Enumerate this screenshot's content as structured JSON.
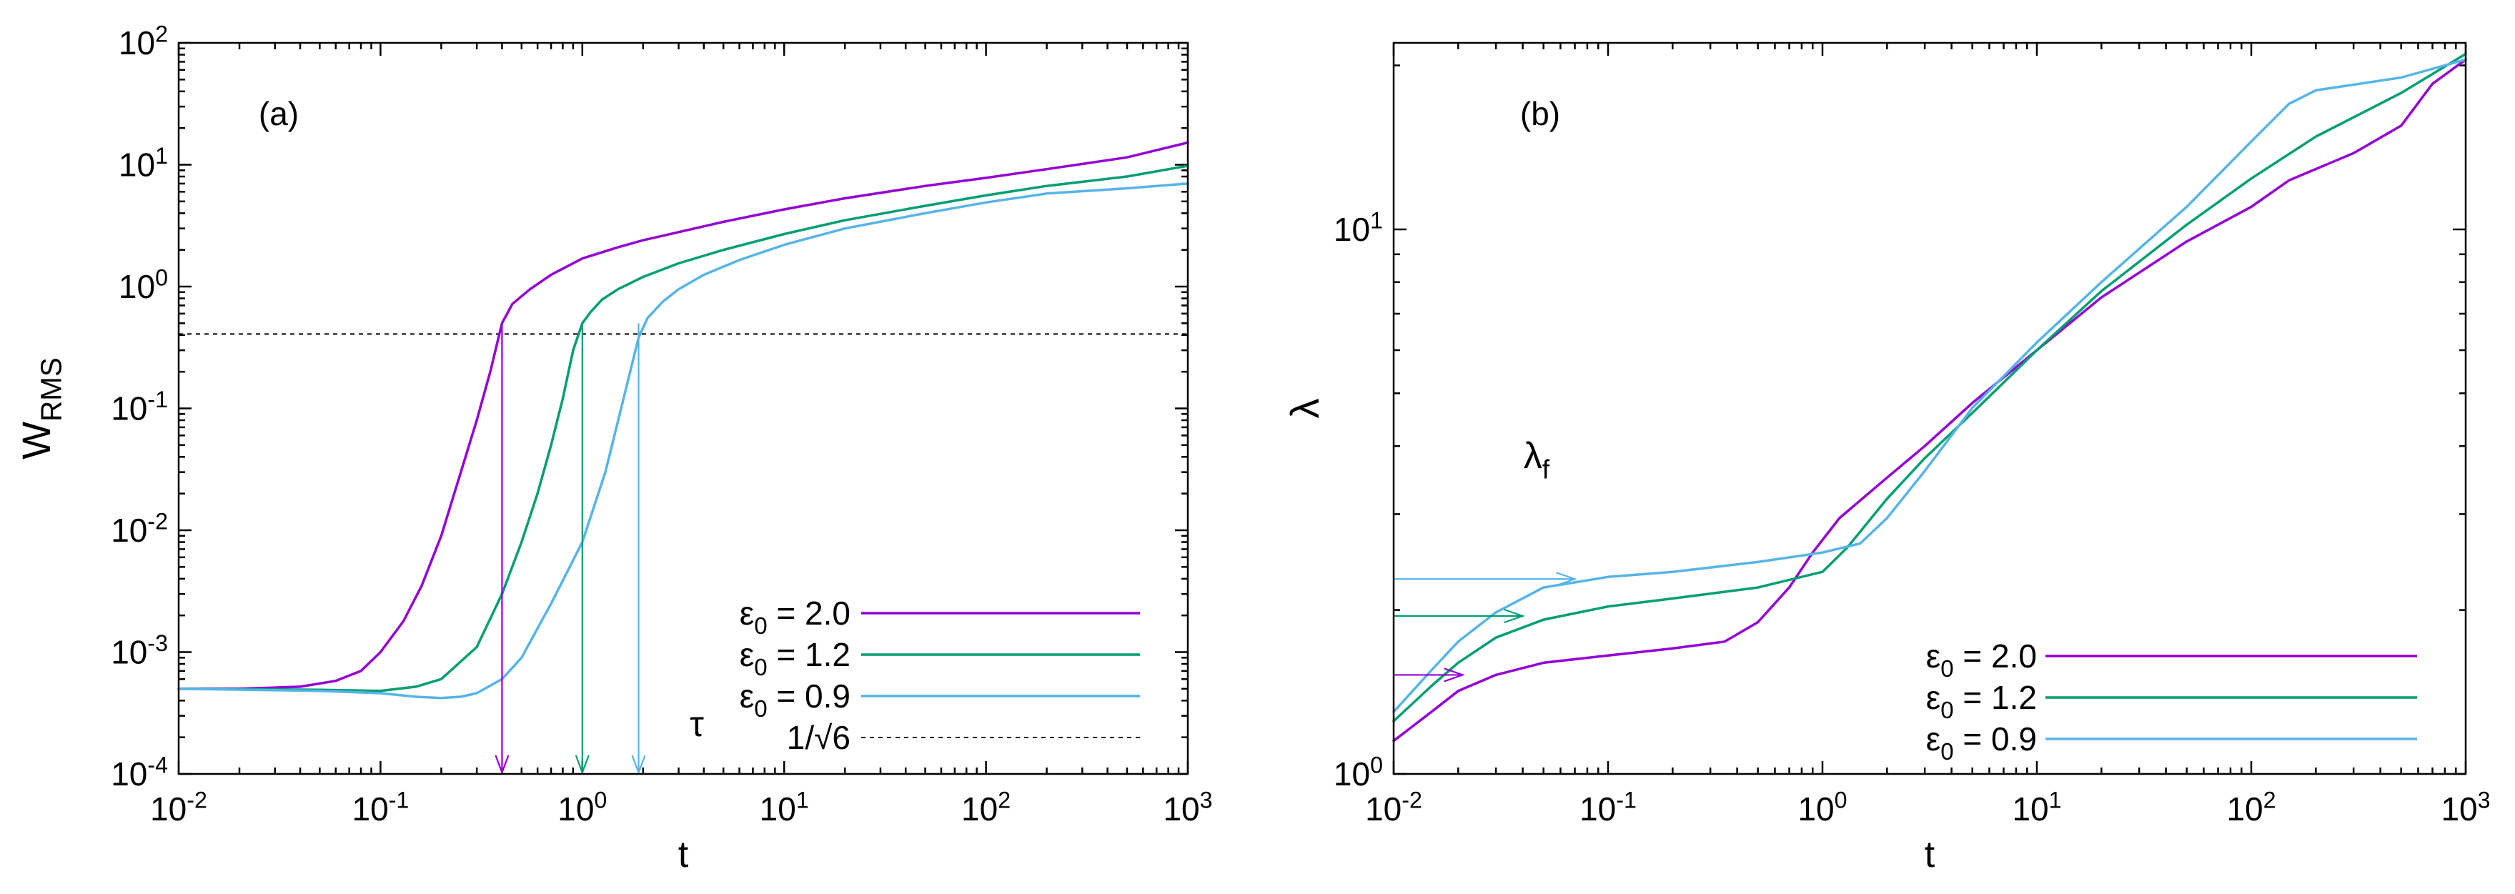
{
  "chart_data": [
    {
      "type": "line",
      "panel_label": "(a)",
      "xlabel": "t",
      "ylabel": {
        "main": "W",
        "sub": "RMS"
      },
      "xscale": "log",
      "yscale": "log",
      "xlim": [
        0.01,
        1000
      ],
      "ylim": [
        0.0001,
        100
      ],
      "x_ticks": [
        {
          "base": "10",
          "exp": "-2"
        },
        {
          "base": "10",
          "exp": "-1"
        },
        {
          "base": "10",
          "exp": "0"
        },
        {
          "base": "10",
          "exp": "1"
        },
        {
          "base": "10",
          "exp": "2"
        },
        {
          "base": "10",
          "exp": "3"
        }
      ],
      "y_ticks": [
        {
          "base": "10",
          "exp": "-4"
        },
        {
          "base": "10",
          "exp": "-3"
        },
        {
          "base": "10",
          "exp": "-2"
        },
        {
          "base": "10",
          "exp": "-1"
        },
        {
          "base": "10",
          "exp": "0"
        },
        {
          "base": "10",
          "exp": "1"
        },
        {
          "base": "10",
          "exp": "2"
        }
      ],
      "series": [
        {
          "legend": {
            "symbol": "ε",
            "sub": "0",
            "rest": " = 2.0"
          },
          "color": "#9400d3",
          "x": [
            0.01,
            0.02,
            0.04,
            0.06,
            0.08,
            0.1,
            0.13,
            0.16,
            0.2,
            0.25,
            0.3,
            0.35,
            0.4,
            0.45,
            0.55,
            0.7,
            1.0,
            1.5,
            2.0,
            3.0,
            5.0,
            10,
            20,
            50,
            100,
            200,
            500,
            1000
          ],
          "y": [
            0.0005,
            0.0005,
            0.00052,
            0.00058,
            0.0007,
            0.001,
            0.0018,
            0.0035,
            0.009,
            0.03,
            0.08,
            0.2,
            0.5,
            0.72,
            0.95,
            1.25,
            1.7,
            2.1,
            2.4,
            2.8,
            3.4,
            4.3,
            5.3,
            6.7,
            7.8,
            9.2,
            11.5,
            15.2
          ]
        },
        {
          "legend": {
            "symbol": "ε",
            "sub": "0",
            "rest": " = 1.2"
          },
          "color": "#009e73",
          "x": [
            0.01,
            0.05,
            0.1,
            0.15,
            0.2,
            0.3,
            0.4,
            0.5,
            0.6,
            0.7,
            0.8,
            0.9,
            1.0,
            1.1,
            1.25,
            1.5,
            2.0,
            3.0,
            5.0,
            10,
            20,
            50,
            100,
            200,
            500,
            1000
          ],
          "y": [
            0.0005,
            0.00049,
            0.00048,
            0.00052,
            0.0006,
            0.0011,
            0.003,
            0.008,
            0.02,
            0.05,
            0.12,
            0.3,
            0.5,
            0.62,
            0.78,
            0.95,
            1.2,
            1.55,
            2.0,
            2.7,
            3.5,
            4.6,
            5.6,
            6.7,
            8.0,
            9.8
          ]
        },
        {
          "legend": {
            "symbol": "ε",
            "sub": "0",
            "rest": " = 0.9"
          },
          "color": "#56b4e9",
          "x": [
            0.01,
            0.05,
            0.1,
            0.15,
            0.2,
            0.25,
            0.3,
            0.4,
            0.5,
            0.7,
            1.0,
            1.3,
            1.6,
            1.9,
            2.1,
            2.5,
            3.0,
            4.0,
            6.0,
            10,
            20,
            50,
            100,
            200,
            500,
            1000
          ],
          "y": [
            0.0005,
            0.00048,
            0.00046,
            0.00043,
            0.00042,
            0.00043,
            0.00046,
            0.0006,
            0.0009,
            0.0025,
            0.008,
            0.03,
            0.12,
            0.38,
            0.55,
            0.75,
            0.95,
            1.25,
            1.65,
            2.2,
            3.0,
            4.0,
            4.9,
            5.8,
            6.4,
            7.0
          ]
        }
      ],
      "reference_line": {
        "legend": "1/√6",
        "y": 0.408,
        "style": "dashed",
        "color": "#000000"
      },
      "arrows": [
        {
          "x": 0.4,
          "from_y": 0.5,
          "to_y": 0.0001,
          "color": "#9400d3"
        },
        {
          "x": 1.0,
          "from_y": 0.5,
          "to_y": 0.0001,
          "color": "#009e73"
        },
        {
          "x": 1.9,
          "from_y": 0.5,
          "to_y": 0.0001,
          "color": "#56b4e9"
        }
      ],
      "annotation": "τ",
      "legend_position": "bottom-right"
    },
    {
      "type": "line",
      "panel_label": "(b)",
      "xlabel": "t",
      "ylabel": "λ",
      "xscale": "log",
      "yscale": "log",
      "xlim": [
        0.01,
        1000
      ],
      "ylim": [
        1,
        22
      ],
      "x_ticks": [
        {
          "base": "10",
          "exp": "-2"
        },
        {
          "base": "10",
          "exp": "-1"
        },
        {
          "base": "10",
          "exp": "0"
        },
        {
          "base": "10",
          "exp": "1"
        },
        {
          "base": "10",
          "exp": "2"
        },
        {
          "base": "10",
          "exp": "3"
        }
      ],
      "y_ticks": [
        {
          "base": "10",
          "exp": "0"
        },
        {
          "base": "10",
          "exp": "1"
        }
      ],
      "series": [
        {
          "legend": {
            "symbol": "ε",
            "sub": "0",
            "rest": " = 2.0"
          },
          "color": "#9400d3",
          "x": [
            0.01,
            0.015,
            0.02,
            0.03,
            0.05,
            0.1,
            0.2,
            0.35,
            0.5,
            0.7,
            0.9,
            1.2,
            2.0,
            3.0,
            5.0,
            10,
            20,
            50,
            100,
            150,
            300,
            500,
            700,
            1000
          ],
          "y": [
            1.15,
            1.3,
            1.42,
            1.52,
            1.6,
            1.65,
            1.7,
            1.75,
            1.9,
            2.2,
            2.55,
            2.95,
            3.5,
            4.0,
            4.8,
            6.0,
            7.5,
            9.5,
            11.0,
            12.3,
            13.8,
            15.5,
            18.5,
            20.5
          ]
        },
        {
          "legend": {
            "symbol": "ε",
            "sub": "0",
            "rest": " = 1.2"
          },
          "color": "#009e73",
          "x": [
            0.01,
            0.015,
            0.02,
            0.03,
            0.05,
            0.1,
            0.2,
            0.5,
            1.0,
            1.3,
            2.0,
            3.0,
            5.0,
            10,
            20,
            50,
            100,
            200,
            500,
            1000
          ],
          "y": [
            1.25,
            1.45,
            1.6,
            1.78,
            1.92,
            2.03,
            2.1,
            2.2,
            2.35,
            2.6,
            3.2,
            3.8,
            4.6,
            6.0,
            7.7,
            10.2,
            12.4,
            14.8,
            17.8,
            21.0
          ]
        },
        {
          "legend": {
            "symbol": "ε",
            "sub": "0",
            "rest": " = 0.9"
          },
          "color": "#56b4e9",
          "x": [
            0.01,
            0.015,
            0.02,
            0.03,
            0.05,
            0.1,
            0.2,
            0.5,
            1.0,
            1.5,
            2.0,
            3.0,
            5.0,
            10,
            20,
            50,
            100,
            150,
            200,
            500,
            1000
          ],
          "y": [
            1.3,
            1.55,
            1.75,
            1.98,
            2.2,
            2.3,
            2.35,
            2.45,
            2.55,
            2.65,
            2.95,
            3.6,
            4.7,
            6.2,
            8.0,
            11.0,
            14.5,
            17.0,
            18.0,
            19.0,
            20.5
          ]
        }
      ],
      "arrows": [
        {
          "from_x": 0.01,
          "to_x": 0.021,
          "y": 1.52,
          "color": "#9400d3"
        },
        {
          "from_x": 0.01,
          "to_x": 0.04,
          "y": 1.95,
          "color": "#009e73"
        },
        {
          "from_x": 0.01,
          "to_x": 0.07,
          "y": 2.28,
          "color": "#56b4e9"
        }
      ],
      "annotation": {
        "main": "λ",
        "sub": "f"
      },
      "legend_position": "bottom-right"
    }
  ]
}
